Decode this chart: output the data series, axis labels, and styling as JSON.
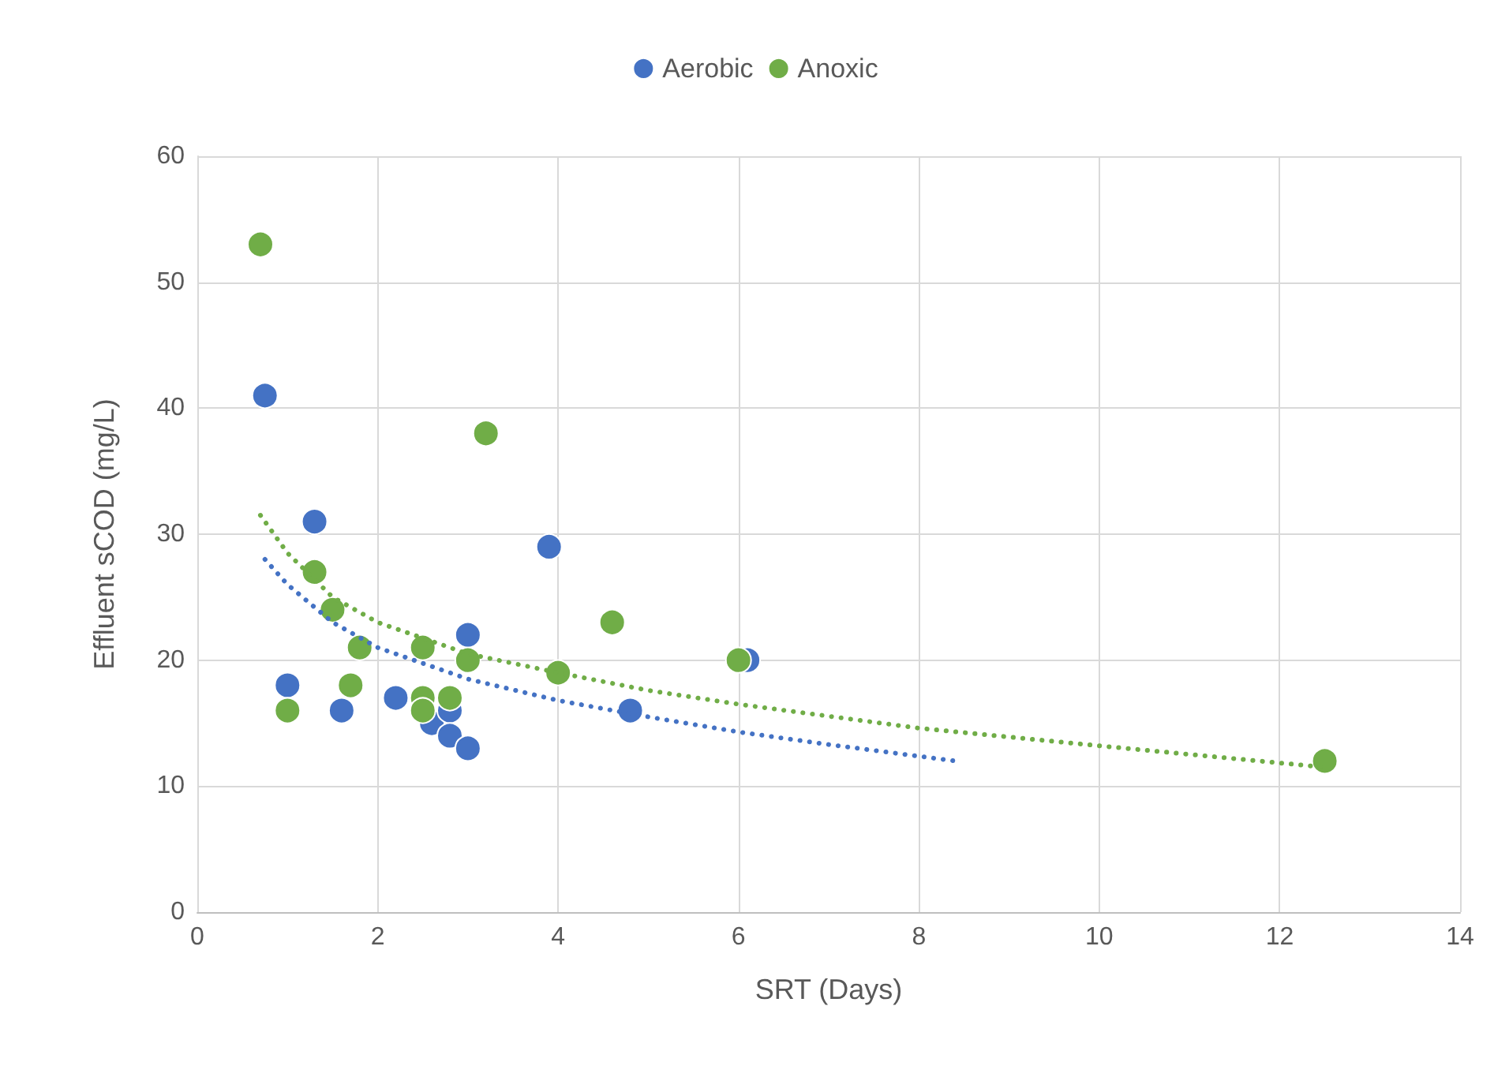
{
  "chart_data": {
    "type": "scatter",
    "xlabel": "SRT (Days)",
    "ylabel": "Effluent sCOD (mg/L)",
    "xlim": [
      0,
      14
    ],
    "xticks": [
      0,
      2,
      4,
      6,
      8,
      10,
      12,
      14
    ],
    "ylim": [
      0,
      60
    ],
    "yticks": [
      0,
      10,
      20,
      30,
      40,
      50,
      60
    ],
    "grid": true,
    "legend": "top",
    "marker": "circle",
    "series": [
      {
        "name": "Aerobic",
        "color": "#4472c4",
        "x": [
          0.75,
          1.3,
          1.0,
          1.6,
          2.2,
          2.6,
          2.8,
          2.8,
          3.0,
          3.0,
          3.9,
          4.8,
          6.1
        ],
        "values": [
          41,
          31,
          18,
          16,
          17,
          15,
          16,
          14,
          13,
          22,
          29,
          16,
          20
        ]
      },
      {
        "name": "Anoxic",
        "color": "#70ad47",
        "x": [
          0.7,
          1.0,
          1.3,
          1.5,
          1.7,
          1.8,
          2.5,
          2.5,
          2.5,
          2.8,
          3.0,
          3.2,
          4.0,
          4.6,
          6.0,
          12.5
        ],
        "values": [
          53,
          16,
          27,
          24,
          18,
          21,
          21,
          17,
          16,
          17,
          20,
          38,
          19,
          23,
          20,
          12
        ]
      },
      {
        "type": "line",
        "color": "#4472c4",
        "line_style": "dotted",
        "marker": "none",
        "x": [
          0.75,
          1,
          1.5,
          2,
          3,
          4,
          5,
          6,
          7,
          8.4
        ],
        "values": [
          28,
          26,
          23,
          21,
          18.5,
          16.8,
          15.5,
          14.3,
          13.3,
          12
        ]
      },
      {
        "type": "line",
        "color": "#70ad47",
        "line_style": "dotted",
        "marker": "none",
        "x": [
          0.7,
          1,
          1.5,
          2,
          3,
          4,
          5,
          6,
          8,
          10,
          12.5
        ],
        "values": [
          31.5,
          28.5,
          25,
          23,
          20.5,
          19,
          17.6,
          16.5,
          14.6,
          13.2,
          11.5
        ]
      }
    ]
  }
}
